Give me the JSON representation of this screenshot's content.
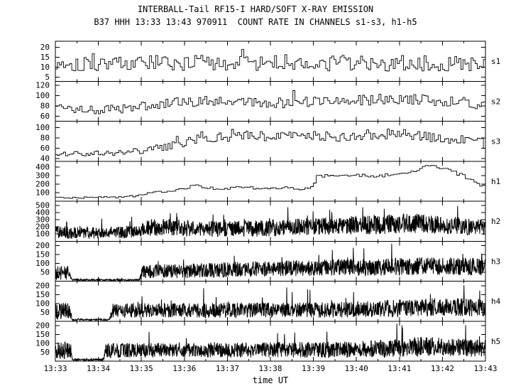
{
  "chart_data": {
    "type": "line",
    "title": "INTERBALL-Tail RF15-I HARD/SOFT X-RAY EMISSION",
    "subtitle": "B37 HHH 13:33 13:43 970911  COUNT RATE IN CHANNELS s1-s3, h1-h5",
    "xlabel": "time UT",
    "x_ticks": [
      "13:33",
      "13:34",
      "13:35",
      "13:36",
      "13:37",
      "13:38",
      "13:39",
      "13:40",
      "13:41",
      "13:42",
      "13:43"
    ],
    "x_range_minutes": [
      0,
      10
    ],
    "grid": false,
    "legend": "channel labels on right edge",
    "panels": [
      {
        "name": "s1",
        "seed": 101,
        "style": "steps",
        "samples": 210,
        "line_width": 0.9,
        "ylim": [
          3,
          23
        ],
        "yticks": [
          5,
          10,
          15,
          20
        ],
        "mean": [
          [
            0,
            12
          ],
          [
            10,
            12
          ]
        ],
        "amp": [
          [
            0,
            4
          ],
          [
            10,
            4
          ]
        ],
        "spike_prob": 0.02,
        "spike_scale": 1.0
      },
      {
        "name": "s2",
        "seed": 102,
        "style": "steps",
        "samples": 210,
        "line_width": 0.9,
        "ylim": [
          50,
          128
        ],
        "yticks": [
          60,
          80,
          100,
          120
        ],
        "mean": [
          [
            0,
            76
          ],
          [
            0.8,
            71
          ],
          [
            1.5,
            74
          ],
          [
            2,
            80
          ],
          [
            2.8,
            86
          ],
          [
            3.5,
            90
          ],
          [
            4.5,
            88
          ],
          [
            5.5,
            86
          ],
          [
            6.5,
            90
          ],
          [
            7.5,
            92
          ],
          [
            8,
            95
          ],
          [
            8.5,
            92
          ],
          [
            9,
            88
          ],
          [
            9.5,
            86
          ],
          [
            10,
            84
          ]
        ],
        "amp": [
          [
            0,
            8
          ],
          [
            3,
            10
          ],
          [
            10,
            11
          ]
        ],
        "spike_prob": 0.02,
        "spike_scale": 1.0
      },
      {
        "name": "s3",
        "seed": 103,
        "style": "steps",
        "samples": 210,
        "line_width": 0.9,
        "ylim": [
          35,
          112
        ],
        "yticks": [
          40,
          60,
          80,
          100
        ],
        "mean": [
          [
            0,
            50
          ],
          [
            1,
            50
          ],
          [
            2,
            55
          ],
          [
            2.5,
            62
          ],
          [
            3,
            72
          ],
          [
            3.5,
            80
          ],
          [
            4,
            82
          ],
          [
            4.5,
            85
          ],
          [
            5,
            83
          ],
          [
            5.5,
            86
          ],
          [
            6,
            84
          ],
          [
            6.5,
            82
          ],
          [
            7,
            84
          ],
          [
            7.5,
            88
          ],
          [
            8,
            86
          ],
          [
            8.5,
            84
          ],
          [
            9,
            80
          ],
          [
            9.5,
            74
          ],
          [
            10,
            68
          ]
        ],
        "amp": [
          [
            0,
            5
          ],
          [
            2,
            6
          ],
          [
            3,
            9
          ],
          [
            10,
            10
          ]
        ],
        "spike_prob": 0.015,
        "spike_scale": 1.0
      },
      {
        "name": "h1",
        "seed": 104,
        "style": "steps",
        "samples": 150,
        "line_width": 0.9,
        "ylim": [
          0,
          470
        ],
        "yticks": [
          100,
          200,
          300,
          400
        ],
        "mean": [
          [
            0,
            40
          ],
          [
            0.8,
            42
          ],
          [
            1.5,
            50
          ],
          [
            1.9,
            60
          ],
          [
            2.1,
            90
          ],
          [
            2.4,
            110
          ],
          [
            2.7,
            125
          ],
          [
            3,
            150
          ],
          [
            3.2,
            185
          ],
          [
            3.4,
            170
          ],
          [
            3.7,
            150
          ],
          [
            4.1,
            155
          ],
          [
            4.4,
            165
          ],
          [
            4.7,
            150
          ],
          [
            5,
            148
          ],
          [
            5.4,
            158
          ],
          [
            5.7,
            150
          ],
          [
            5.95,
            160
          ],
          [
            6.05,
            285
          ],
          [
            6.3,
            300
          ],
          [
            6.6,
            315
          ],
          [
            6.9,
            295
          ],
          [
            7.2,
            305
          ],
          [
            7.5,
            295
          ],
          [
            7.8,
            310
          ],
          [
            8.1,
            335
          ],
          [
            8.35,
            365
          ],
          [
            8.55,
            400
          ],
          [
            8.7,
            420
          ],
          [
            8.85,
            400
          ],
          [
            9.05,
            380
          ],
          [
            9.25,
            340
          ],
          [
            9.45,
            300
          ],
          [
            9.65,
            240
          ],
          [
            9.85,
            190
          ],
          [
            10,
            155
          ]
        ],
        "amp": [
          [
            0,
            8
          ],
          [
            2,
            12
          ],
          [
            6,
            18
          ],
          [
            10,
            20
          ]
        ],
        "spike_prob": 0,
        "spike_scale": 0
      },
      {
        "name": "h2",
        "seed": 105,
        "style": "dense",
        "samples": 1500,
        "line_width": 1,
        "ylim": [
          0,
          560
        ],
        "yticks": [
          100,
          200,
          300,
          400,
          500
        ],
        "mean": [
          [
            0,
            130
          ],
          [
            0.3,
            120
          ],
          [
            0.8,
            115
          ],
          [
            1.5,
            125
          ],
          [
            1.9,
            135
          ],
          [
            2.1,
            185
          ],
          [
            2.5,
            195
          ],
          [
            3,
            185
          ],
          [
            3.5,
            175
          ],
          [
            4,
            170
          ],
          [
            4.5,
            175
          ],
          [
            5,
            185
          ],
          [
            5.5,
            195
          ],
          [
            6,
            205
          ],
          [
            6.5,
            215
          ],
          [
            7,
            225
          ],
          [
            7.5,
            230
          ],
          [
            8,
            245
          ],
          [
            8.3,
            250
          ],
          [
            8.7,
            245
          ],
          [
            9,
            230
          ],
          [
            9.3,
            215
          ],
          [
            9.6,
            205
          ],
          [
            10,
            195
          ]
        ],
        "amp": [
          [
            0,
            90
          ],
          [
            1,
            80
          ],
          [
            2,
            90
          ],
          [
            2.2,
            120
          ],
          [
            4,
            110
          ],
          [
            6,
            120
          ],
          [
            8,
            140
          ],
          [
            9,
            130
          ],
          [
            10,
            115
          ]
        ],
        "spike_prob": 0.02,
        "spike_scale": 1.4
      },
      {
        "name": "h3",
        "seed": 106,
        "style": "dense",
        "samples": 1500,
        "line_width": 1,
        "ylim": [
          0,
          225
        ],
        "yticks": [
          50,
          100,
          150,
          200
        ],
        "mean": [
          [
            0,
            45
          ],
          [
            0.3,
            50
          ],
          [
            0.38,
            8
          ],
          [
            1.95,
            6
          ],
          [
            2.02,
            55
          ],
          [
            2.5,
            60
          ],
          [
            3,
            58
          ],
          [
            3.5,
            62
          ],
          [
            4,
            65
          ],
          [
            4.5,
            68
          ],
          [
            5,
            70
          ],
          [
            5.5,
            72
          ],
          [
            6,
            75
          ],
          [
            6.5,
            78
          ],
          [
            7,
            78
          ],
          [
            7.5,
            80
          ],
          [
            8,
            82
          ],
          [
            8.5,
            85
          ],
          [
            9,
            85
          ],
          [
            9.5,
            82
          ],
          [
            10,
            80
          ]
        ],
        "amp": [
          [
            0,
            40
          ],
          [
            0.3,
            40
          ],
          [
            0.38,
            5
          ],
          [
            1.95,
            5
          ],
          [
            2.02,
            40
          ],
          [
            3,
            42
          ],
          [
            6,
            45
          ],
          [
            8,
            50
          ],
          [
            10,
            50
          ]
        ],
        "spike_prob": 0.015,
        "spike_scale": 1.4
      },
      {
        "name": "h4",
        "seed": 107,
        "style": "dense",
        "samples": 1500,
        "line_width": 1,
        "ylim": [
          0,
          225
        ],
        "yticks": [
          50,
          100,
          150,
          200
        ],
        "mean": [
          [
            0,
            55
          ],
          [
            0.32,
            60
          ],
          [
            0.4,
            8
          ],
          [
            1.25,
            8
          ],
          [
            1.33,
            60
          ],
          [
            2,
            62
          ],
          [
            3,
            60
          ],
          [
            4,
            62
          ],
          [
            5,
            62
          ],
          [
            6,
            64
          ],
          [
            7,
            66
          ],
          [
            8,
            72
          ],
          [
            8.5,
            78
          ],
          [
            9,
            80
          ],
          [
            9.5,
            78
          ],
          [
            10,
            75
          ]
        ],
        "amp": [
          [
            0,
            45
          ],
          [
            0.32,
            45
          ],
          [
            0.4,
            5
          ],
          [
            1.25,
            5
          ],
          [
            1.33,
            42
          ],
          [
            3,
            42
          ],
          [
            7,
            45
          ],
          [
            8,
            50
          ],
          [
            10,
            50
          ]
        ],
        "spike_prob": 0.015,
        "spike_scale": 1.4
      },
      {
        "name": "h5",
        "seed": 108,
        "style": "dense",
        "samples": 1500,
        "line_width": 1,
        "ylim": [
          0,
          225
        ],
        "yticks": [
          50,
          100,
          150,
          200
        ],
        "mean": [
          [
            0,
            60
          ],
          [
            0.32,
            65
          ],
          [
            0.4,
            8
          ],
          [
            1.1,
            8
          ],
          [
            1.18,
            60
          ],
          [
            2,
            62
          ],
          [
            3,
            64
          ],
          [
            4,
            62
          ],
          [
            5,
            64
          ],
          [
            6,
            64
          ],
          [
            7,
            66
          ],
          [
            7.5,
            70
          ],
          [
            8,
            75
          ],
          [
            8.5,
            85
          ],
          [
            9,
            80
          ],
          [
            9.5,
            75
          ],
          [
            10,
            72
          ]
        ],
        "amp": [
          [
            0,
            50
          ],
          [
            0.32,
            50
          ],
          [
            0.4,
            5
          ],
          [
            1.1,
            5
          ],
          [
            1.18,
            42
          ],
          [
            3,
            42
          ],
          [
            7,
            45
          ],
          [
            8.5,
            55
          ],
          [
            10,
            48
          ]
        ],
        "spike_prob": 0.015,
        "spike_scale": 1.4
      }
    ]
  }
}
